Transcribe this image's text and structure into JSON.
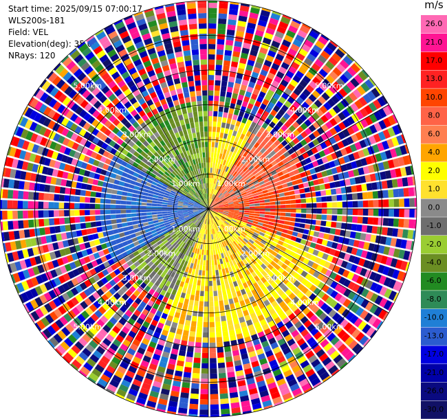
{
  "header": {
    "start_time": "Start time: 2025/09/15 07:00:17",
    "instrument": "WLS200s-181",
    "field": "Field: VEL",
    "elevation": "Elevation(deg): 35.00",
    "nrays": "NRays: 120"
  },
  "chart_data": {
    "type": "heatmap",
    "projection": "polar-ppi",
    "field": "VEL",
    "units": "m/s",
    "n_rays": 120,
    "range_rings_km": [
      1,
      2,
      3,
      4,
      5
    ],
    "range_ring_labels": [
      "1.00km",
      "2.00km",
      "3.00km",
      "4.00km",
      "5.00km"
    ],
    "max_range_km": 6.0,
    "colorbar": {
      "unit_label": "m/s",
      "tick_labels": [
        "26.0",
        "21.0",
        "17.0",
        "13.0",
        "10.0",
        "8.0",
        "6.0",
        "4.0",
        "2.0",
        "1.0",
        "0.0",
        "-1.0",
        "-2.0",
        "-4.0",
        "-6.0",
        "-8.0",
        "-10.0",
        "-13.0",
        "-17.0",
        "-21.0",
        "-26.0",
        "-30.0"
      ],
      "bounds": [
        -30,
        -26,
        -21,
        -17,
        -13,
        -10,
        -8,
        -6,
        -4,
        -2,
        -1,
        0,
        1,
        2,
        4,
        6,
        8,
        10,
        13,
        17,
        21,
        26,
        30
      ],
      "colors": [
        "#111166",
        "#0a0a80",
        "#0000a8",
        "#0000e0",
        "#2b5ccf",
        "#1f7fd6",
        "#2e8b57",
        "#228b22",
        "#6b8e23",
        "#9acd32",
        "#6e6e6e",
        "#8a8a8a",
        "#ffe12e",
        "#ffff00",
        "#ffa500",
        "#ff7f50",
        "#ff6347",
        "#ff4500",
        "#ff2222",
        "#ff0000",
        "#ff1493",
        "#ff69b4"
      ]
    },
    "sectors": [
      {
        "az_from": 0,
        "az_to": 30,
        "r_to_km": 2.6,
        "dominant_value": 3.0,
        "note": "yellow wedge NE"
      },
      {
        "az_from": 30,
        "az_to": 75,
        "r_to_km": 2.8,
        "dominant_value": 9.0,
        "note": "coral/red NE"
      },
      {
        "az_from": 75,
        "az_to": 110,
        "r_to_km": 2.4,
        "dominant_value": 12.0,
        "note": "orange-red E"
      },
      {
        "az_from": 110,
        "az_to": 200,
        "r_to_km": 3.8,
        "dominant_value": 3.0,
        "note": "yellow/orange S"
      },
      {
        "az_from": 200,
        "az_to": 240,
        "r_to_km": 2.8,
        "dominant_value": -1.5,
        "note": "olive/green SW"
      },
      {
        "az_from": 240,
        "az_to": 300,
        "r_to_km": 3.0,
        "dominant_value": -11.0,
        "note": "blue W"
      },
      {
        "az_from": 300,
        "az_to": 360,
        "r_to_km": 3.0,
        "dominant_value": -3.0,
        "note": "green NW"
      }
    ]
  }
}
